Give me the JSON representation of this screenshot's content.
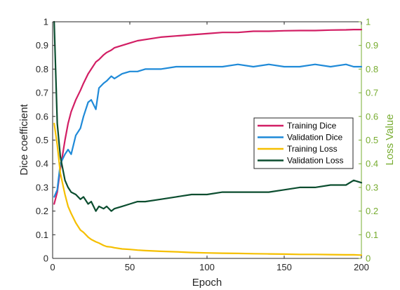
{
  "chart_data": {
    "type": "line",
    "xlabel": "Epoch",
    "ylabel_left": "Dice coefficient",
    "ylabel_right": "Loss Value",
    "xlim": [
      0,
      200
    ],
    "ylim_left": [
      0,
      1
    ],
    "ylim_right": [
      0,
      1
    ],
    "x_ticks": [
      "0",
      "50",
      "100",
      "150",
      "200"
    ],
    "y_ticks_left": [
      "0",
      "0.1",
      "0.2",
      "0.3",
      "0.4",
      "0.5",
      "0.6",
      "0.7",
      "0.8",
      "0.9",
      "1"
    ],
    "y_ticks_right": [
      "0",
      "0.1",
      "0.2",
      "0.3",
      "0.4",
      "0.5",
      "0.6",
      "0.7",
      "0.8",
      "0.9",
      "1"
    ],
    "grid": false,
    "legend_position": "right",
    "x": [
      1,
      3,
      5,
      8,
      10,
      12,
      15,
      18,
      20,
      23,
      25,
      28,
      30,
      33,
      35,
      38,
      40,
      45,
      50,
      55,
      60,
      70,
      80,
      90,
      100,
      110,
      120,
      130,
      140,
      150,
      160,
      170,
      180,
      190,
      195,
      200
    ],
    "series": [
      {
        "name": "Training Dice",
        "axis": "left",
        "color": "#d21e64",
        "values": [
          0.23,
          0.28,
          0.38,
          0.5,
          0.57,
          0.62,
          0.67,
          0.71,
          0.74,
          0.78,
          0.8,
          0.83,
          0.84,
          0.86,
          0.87,
          0.88,
          0.89,
          0.9,
          0.91,
          0.92,
          0.925,
          0.935,
          0.94,
          0.945,
          0.95,
          0.955,
          0.955,
          0.96,
          0.96,
          0.962,
          0.963,
          0.963,
          0.965,
          0.966,
          0.967,
          0.967
        ]
      },
      {
        "name": "Validation Dice",
        "axis": "left",
        "color": "#1f8ad8",
        "values": [
          0.26,
          0.29,
          0.4,
          0.44,
          0.46,
          0.44,
          0.52,
          0.55,
          0.6,
          0.66,
          0.67,
          0.63,
          0.72,
          0.74,
          0.75,
          0.77,
          0.76,
          0.78,
          0.79,
          0.79,
          0.8,
          0.8,
          0.81,
          0.81,
          0.81,
          0.81,
          0.82,
          0.81,
          0.82,
          0.81,
          0.81,
          0.82,
          0.81,
          0.82,
          0.81,
          0.81
        ]
      },
      {
        "name": "Training Loss",
        "axis": "right",
        "color": "#f5bf00",
        "values": [
          0.57,
          0.48,
          0.36,
          0.27,
          0.22,
          0.19,
          0.15,
          0.12,
          0.11,
          0.09,
          0.08,
          0.07,
          0.065,
          0.055,
          0.05,
          0.048,
          0.045,
          0.04,
          0.038,
          0.035,
          0.033,
          0.03,
          0.028,
          0.025,
          0.023,
          0.022,
          0.021,
          0.02,
          0.019,
          0.018,
          0.017,
          0.017,
          0.016,
          0.015,
          0.015,
          0.014
        ]
      },
      {
        "name": "Validation Loss",
        "axis": "right",
        "color": "#0b4d2f",
        "values": [
          1.0,
          0.57,
          0.43,
          0.33,
          0.3,
          0.28,
          0.27,
          0.25,
          0.26,
          0.23,
          0.24,
          0.2,
          0.22,
          0.21,
          0.22,
          0.2,
          0.21,
          0.22,
          0.23,
          0.24,
          0.24,
          0.25,
          0.26,
          0.27,
          0.27,
          0.28,
          0.28,
          0.28,
          0.28,
          0.29,
          0.3,
          0.3,
          0.31,
          0.31,
          0.33,
          0.32
        ]
      }
    ]
  }
}
